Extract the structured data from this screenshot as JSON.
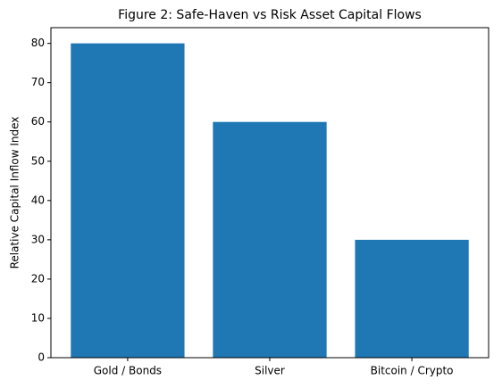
{
  "chart_data": {
    "type": "bar",
    "title": "Figure 2: Safe-Haven vs Risk Asset Capital Flows",
    "y_label": "Relative Capital Inflow Index",
    "categories": [
      "Gold / Bonds",
      "Silver",
      "Bitcoin / Crypto"
    ],
    "values": [
      80,
      60,
      30
    ],
    "color": "#1f77b4",
    "ylim": [
      0,
      84
    ],
    "yticks": [
      0,
      10,
      20,
      30,
      40,
      50,
      60,
      70,
      80
    ],
    "grid": false
  }
}
